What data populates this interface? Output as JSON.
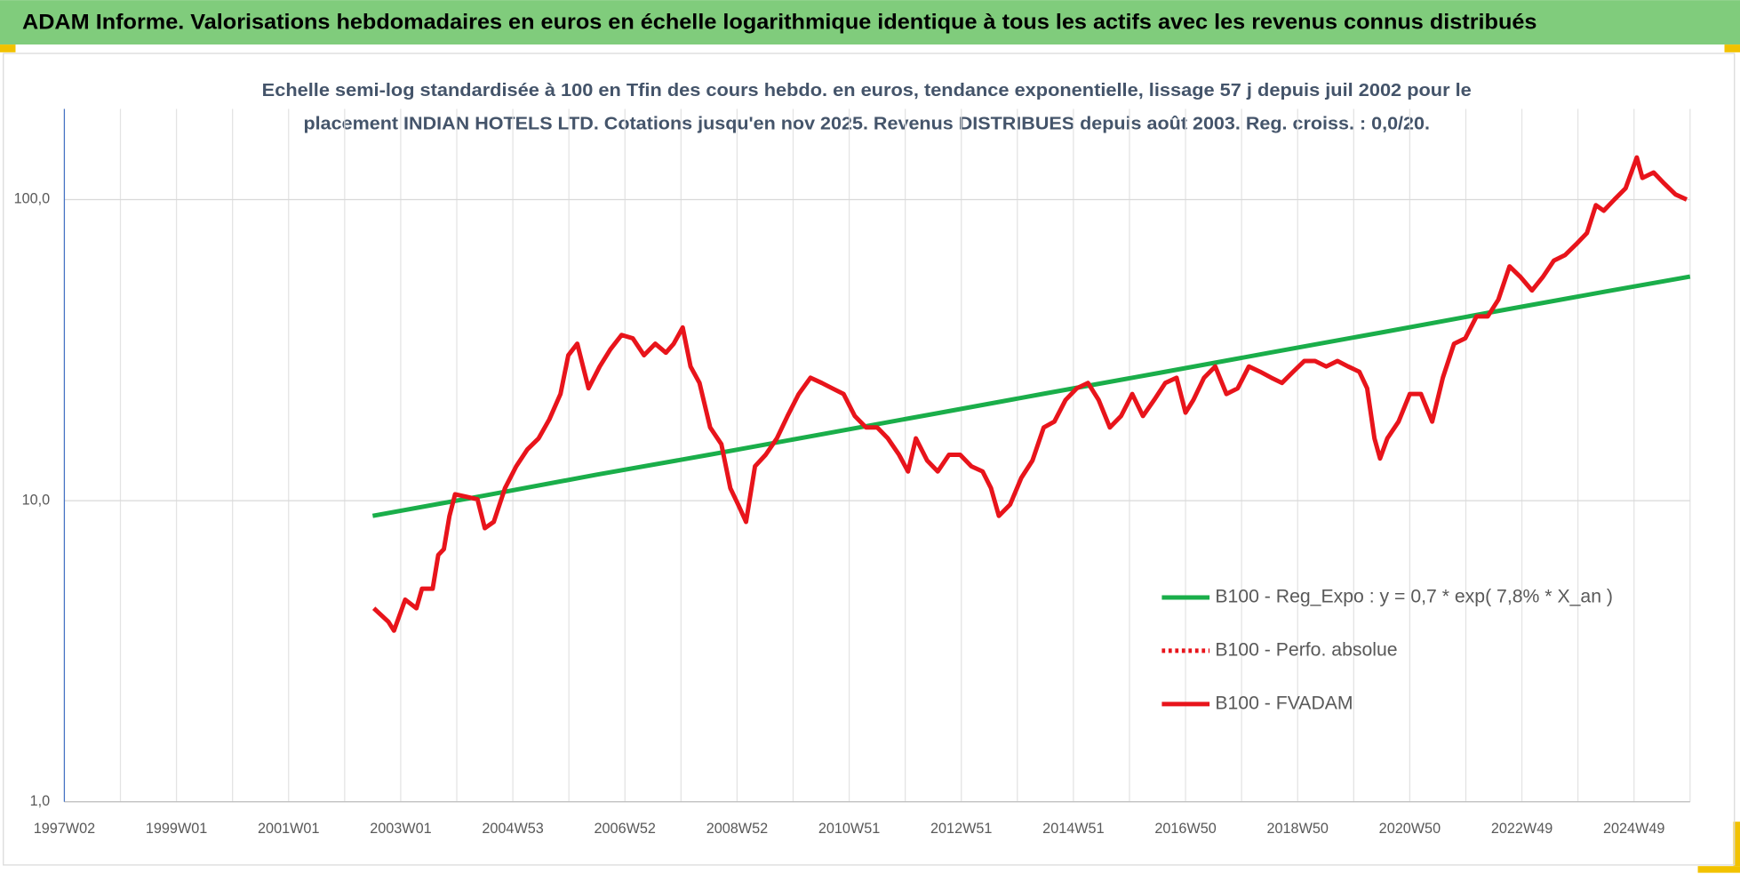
{
  "header": {
    "title": "ADAM Informe. Valorisations hebdomadaires en euros en échelle logarithmique identique à tous les actifs avec les revenus connus distribués"
  },
  "chart_data": {
    "type": "line",
    "title_lines": [
      "Echelle semi-log standardisée à 100 en Tfin des cours hebdo. en euros, tendance exponentielle, lissage 57 j depuis juil 2002 pour le",
      "placement INDIAN HOTELS LTD. Cotations jusqu'en nov 2025. Revenus DISTRIBUES depuis août 2003. Reg. croiss. : 0,0/20."
    ],
    "log_y": true,
    "grid": true,
    "legend_position": "right",
    "xlim": [
      1997,
      2026
    ],
    "ylim": [
      1,
      200
    ],
    "yticks": [
      {
        "value": 1,
        "label": "1,0"
      },
      {
        "value": 10,
        "label": "10,0"
      },
      {
        "value": 100,
        "label": "100,0"
      }
    ],
    "xticks": [
      {
        "value": 1997,
        "label": "1997W02"
      },
      {
        "value": 1999,
        "label": "1999W01"
      },
      {
        "value": 2001,
        "label": "2001W01"
      },
      {
        "value": 2003,
        "label": "2003W01"
      },
      {
        "value": 2005,
        "label": "2004W53"
      },
      {
        "value": 2007,
        "label": "2006W52"
      },
      {
        "value": 2009,
        "label": "2008W52"
      },
      {
        "value": 2011,
        "label": "2010W51"
      },
      {
        "value": 2013,
        "label": "2012W51"
      },
      {
        "value": 2015,
        "label": "2014W51"
      },
      {
        "value": 2017,
        "label": "2016W50"
      },
      {
        "value": 2019,
        "label": "2018W50"
      },
      {
        "value": 2021,
        "label": "2020W50"
      },
      {
        "value": 2023,
        "label": "2022W49"
      },
      {
        "value": 2025,
        "label": "2024W49"
      }
    ],
    "xgrid_minor": [
      1998,
      2000,
      2002,
      2004,
      2006,
      2008,
      2010,
      2012,
      2014,
      2016,
      2018,
      2020,
      2022,
      2024,
      2026
    ],
    "series": [
      {
        "name": "B100 - Reg_Expo : y = 0,7 * exp( 7,8% *  X_an )",
        "color": "#1aae4a",
        "style": "solid",
        "x": [
          2002.5,
          2004.5,
          2006.5,
          2008.5,
          2010.5,
          2012.5,
          2014.5,
          2016.5,
          2018.5,
          2020.5,
          2022.5,
          2024.5,
          2026
        ],
        "values": [
          8.9,
          10.4,
          12.2,
          14.2,
          16.6,
          19.4,
          22.7,
          26.5,
          31.0,
          36.2,
          42.4,
          49.5,
          55.5
        ]
      },
      {
        "name": "B100 - Perfo. absolue",
        "color": "#e8141b",
        "style": "dotted",
        "x": [],
        "values": []
      },
      {
        "name": "B100 - FVADAM",
        "color": "#e8141b",
        "style": "solid",
        "x": [
          2002.52,
          2002.78,
          2002.88,
          2003.08,
          2003.28,
          2003.38,
          2003.57,
          2003.67,
          2003.77,
          2003.87,
          2003.97,
          2004.17,
          2004.37,
          2004.5,
          2004.66,
          2004.86,
          2005.06,
          2005.26,
          2005.46,
          2005.65,
          2005.85,
          2005.99,
          2006.15,
          2006.35,
          2006.55,
          2006.74,
          2006.94,
          2007.14,
          2007.34,
          2007.54,
          2007.73,
          2007.87,
          2008.03,
          2008.17,
          2008.33,
          2008.52,
          2008.72,
          2008.88,
          2009.02,
          2009.16,
          2009.32,
          2009.51,
          2009.71,
          2009.9,
          2010.1,
          2010.31,
          2010.51,
          2010.7,
          2010.9,
          2011.1,
          2011.3,
          2011.5,
          2011.69,
          2011.89,
          2012.05,
          2012.19,
          2012.39,
          2012.58,
          2012.78,
          2012.98,
          2013.18,
          2013.38,
          2013.53,
          2013.67,
          2013.87,
          2014.07,
          2014.27,
          2014.47,
          2014.66,
          2014.86,
          2015.06,
          2015.26,
          2015.45,
          2015.65,
          2015.85,
          2016.05,
          2016.24,
          2016.44,
          2016.64,
          2016.84,
          2017.0,
          2017.14,
          2017.33,
          2017.53,
          2017.73,
          2017.93,
          2018.13,
          2018.33,
          2018.53,
          2018.72,
          2018.92,
          2019.12,
          2019.31,
          2019.51,
          2019.71,
          2019.9,
          2020.1,
          2020.24,
          2020.37,
          2020.47,
          2020.6,
          2020.8,
          2021.0,
          2021.2,
          2021.4,
          2021.59,
          2021.79,
          2021.99,
          2022.19,
          2022.39,
          2022.58,
          2022.78,
          2022.98,
          2023.18,
          2023.37,
          2023.57,
          2023.77,
          2023.97,
          2024.16,
          2024.32,
          2024.46,
          2024.65,
          2024.85,
          2025.05,
          2025.15,
          2025.35,
          2025.54,
          2025.74,
          2025.94
        ],
        "values": [
          4.39,
          3.96,
          3.7,
          4.69,
          4.39,
          5.1,
          5.1,
          6.6,
          6.9,
          8.9,
          10.5,
          10.3,
          10.1,
          8.1,
          8.5,
          11.0,
          13.0,
          14.8,
          16.1,
          18.6,
          22.6,
          30.4,
          33.2,
          23.6,
          27.9,
          31.8,
          35.5,
          34.6,
          30.4,
          33.2,
          31.0,
          33.2,
          37.6,
          27.9,
          24.6,
          17.5,
          15.4,
          11.0,
          9.7,
          8.5,
          13.0,
          14.2,
          16.1,
          19.1,
          22.6,
          25.6,
          24.6,
          23.6,
          22.6,
          19.1,
          17.5,
          17.5,
          16.1,
          14.2,
          12.5,
          16.1,
          13.6,
          12.5,
          14.2,
          14.2,
          13.0,
          12.5,
          11.0,
          8.9,
          9.7,
          11.9,
          13.6,
          17.5,
          18.3,
          21.6,
          23.6,
          24.6,
          21.6,
          17.5,
          19.1,
          22.6,
          19.1,
          21.6,
          24.6,
          25.6,
          19.6,
          21.6,
          25.6,
          27.9,
          22.6,
          23.6,
          27.9,
          26.8,
          25.6,
          24.6,
          26.8,
          29.1,
          29.1,
          27.9,
          29.1,
          27.9,
          26.8,
          23.6,
          16.1,
          13.8,
          16.1,
          18.3,
          22.6,
          22.6,
          18.3,
          25.6,
          33.2,
          34.6,
          40.9,
          40.9,
          46.5,
          60.0,
          55.2,
          49.9,
          55.2,
          62.7,
          65.4,
          71.1,
          77.4,
          95.8,
          91.8,
          100,
          109,
          138,
          118,
          123,
          113,
          104,
          100
        ]
      }
    ]
  }
}
